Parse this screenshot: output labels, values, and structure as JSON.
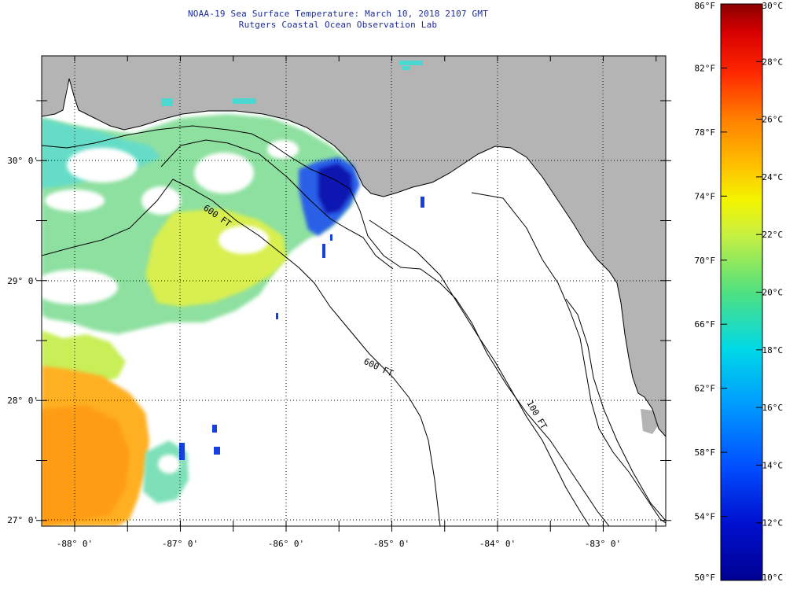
{
  "header": {
    "title": "NOAA-19 Sea Surface Temperature:  March 10, 2018 2107 GMT",
    "subtitle": "Rutgers Coastal Ocean Observation Lab"
  },
  "map": {
    "lat_labels": [
      "30° 0'",
      "29° 0'",
      "28° 0'",
      "27° 0'"
    ],
    "lon_labels": [
      "-88° 0'",
      "-87° 0'",
      "-86° 0'",
      "-85° 0'",
      "-84° 0'",
      "-83° 0'"
    ],
    "isobath_labels": [
      "600 FT",
      "600 FT",
      "100 FT"
    ],
    "colors": {
      "land": "#b4b4b4",
      "no_data": "#ffffff"
    }
  },
  "colorbar": {
    "fahrenheit": [
      "86°F",
      "82°F",
      "78°F",
      "74°F",
      "70°F",
      "66°F",
      "62°F",
      "58°F",
      "54°F",
      "50°F"
    ],
    "celsius": [
      "30°C",
      "28°C",
      "26°C",
      "24°C",
      "22°C",
      "20°C",
      "18°C",
      "16°C",
      "14°C",
      "12°C",
      "10°C"
    ],
    "stops": [
      "#8b0000",
      "#cc0000",
      "#ff2000",
      "#ff6a00",
      "#ffa000",
      "#ffd000",
      "#f0f000",
      "#a8e060",
      "#40d8a0",
      "#00d0f0",
      "#00a0f0",
      "#2060ff",
      "#1020e0",
      "#000090"
    ]
  }
}
